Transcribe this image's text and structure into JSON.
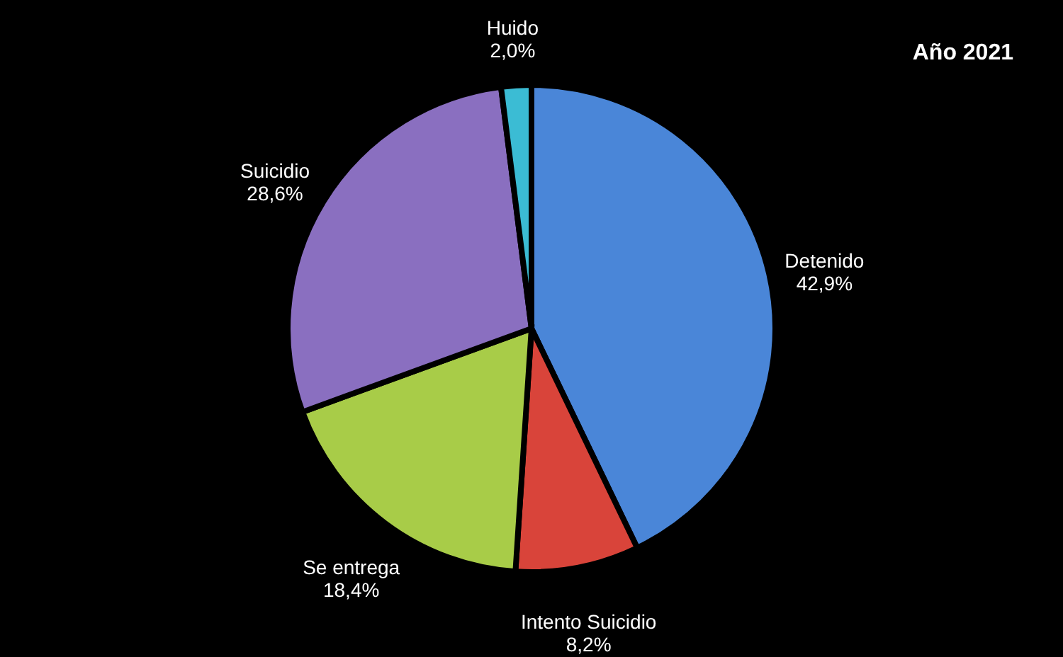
{
  "chart_data": {
    "type": "pie",
    "title": "Año 2021",
    "categories": [
      "Detenido",
      "Intento Suicidio",
      "Se entrega",
      "Suicidio",
      "Huido"
    ],
    "values": [
      42.9,
      8.2,
      18.4,
      28.6,
      2.0
    ],
    "value_labels": [
      "42,9%",
      "8,2%",
      "18,4%",
      "28,6%",
      "2,0%"
    ],
    "colors": [
      "#4a86d8",
      "#d9443a",
      "#a8cc48",
      "#8a6fc0",
      "#3bbcd4"
    ],
    "legend": false
  }
}
